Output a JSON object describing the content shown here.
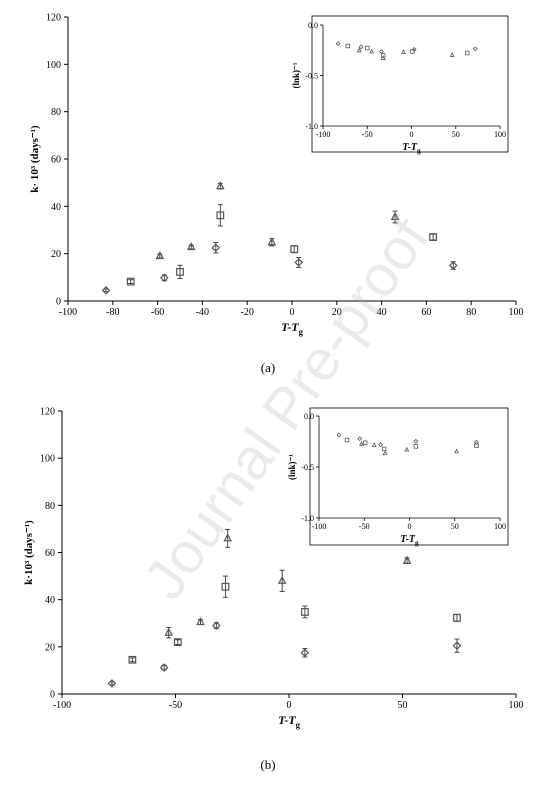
{
  "watermark": "Journal Pre-proof",
  "captions": [
    "(a)",
    "(b)"
  ],
  "chart_data": [
    {
      "type": "scatter",
      "title": "",
      "xlabel": "T-Tg",
      "ylabel": "k· 10³ (days⁻¹)",
      "xlim": [
        -100,
        100
      ],
      "ylim": [
        0,
        120
      ],
      "xticks": [
        -100,
        -80,
        -60,
        -40,
        -20,
        0,
        20,
        40,
        60,
        80,
        100
      ],
      "yticks": [
        0,
        20,
        40,
        60,
        80,
        100,
        120
      ],
      "series": [
        {
          "marker": "diamond",
          "x": [
            -83,
            -57,
            -34,
            3,
            72
          ],
          "y": [
            4.5,
            9.8,
            22.5,
            16.3,
            15
          ],
          "err": [
            0.6,
            1.2,
            2.2,
            2.1,
            1.6
          ]
        },
        {
          "marker": "square",
          "x": [
            -72,
            -50,
            -32,
            1,
            63
          ],
          "y": [
            8.2,
            12.3,
            36.2,
            21.9,
            27
          ],
          "err": [
            0.8,
            2.8,
            4.5,
            1.5,
            1.2
          ]
        },
        {
          "marker": "triangle",
          "x": [
            -59,
            -45,
            -32,
            -9,
            46
          ],
          "y": [
            19,
            22.8,
            48.5,
            24.8,
            35.5
          ],
          "err": [
            0.8,
            0.8,
            1.2,
            1.5,
            2.5
          ]
        }
      ],
      "inset": {
        "xlabel": "T-Tg",
        "ylabel": "(lnk)⁻¹",
        "xlim": [
          -100,
          100
        ],
        "ylim": [
          -1.0,
          0.0
        ],
        "xticks": [
          -100,
          -50,
          0,
          50,
          100
        ],
        "yticks": [
          0.0,
          -0.5,
          -1.0
        ],
        "series": [
          {
            "marker": "diamond",
            "x": [
              -83,
              -57,
              -34,
              3,
              72
            ],
            "y": [
              -0.185,
              -0.217,
              -0.263,
              -0.242,
              -0.237
            ]
          },
          {
            "marker": "square",
            "x": [
              -72,
              -50,
              -32,
              1,
              63
            ],
            "y": [
              -0.208,
              -0.228,
              -0.301,
              -0.262,
              -0.277
            ]
          },
          {
            "marker": "triangle",
            "x": [
              -59,
              -45,
              -32,
              -9,
              46
            ],
            "y": [
              -0.252,
              -0.264,
              -0.33,
              -0.27,
              -0.298
            ]
          }
        ]
      }
    },
    {
      "type": "scatter",
      "title": "",
      "xlabel": "T-Tg",
      "ylabel": "k·10³ (days⁻¹)",
      "xlim": [
        -100,
        100
      ],
      "ylim": [
        0,
        120
      ],
      "xticks": [
        -100,
        -50,
        0,
        50,
        100
      ],
      "yticks": [
        0,
        20,
        40,
        60,
        80,
        100,
        120
      ],
      "series": [
        {
          "marker": "diamond",
          "x": [
            -78,
            -55,
            -32,
            7,
            74
          ],
          "y": [
            4.5,
            11.2,
            29,
            17.5,
            20.5
          ],
          "err": [
            0.6,
            1,
            1.2,
            1.8,
            2.8
          ]
        },
        {
          "marker": "square",
          "x": [
            -69,
            -49,
            -28,
            7,
            74
          ],
          "y": [
            14.5,
            22,
            45.5,
            34.8,
            32.3
          ],
          "err": [
            0.8,
            1,
            4.5,
            2.5,
            1.5
          ]
        },
        {
          "marker": "triangle",
          "x": [
            -53,
            -39,
            -27,
            -3,
            52
          ],
          "y": [
            26,
            30.5,
            66,
            48,
            56.5
          ],
          "err": [
            2.2,
            1,
            3.8,
            4.5,
            1.2
          ]
        }
      ],
      "inset": {
        "xlabel": "T-Tg",
        "ylabel": "(lnk)⁻¹",
        "xlim": [
          -100,
          100
        ],
        "ylim": [
          -1.0,
          0.0
        ],
        "xticks": [
          -100,
          -50,
          0,
          50,
          100
        ],
        "yticks": [
          0.0,
          -0.5,
          -1.0
        ],
        "series": [
          {
            "marker": "diamond",
            "x": [
              -78,
              -55,
              -32,
              7,
              74
            ],
            "y": [
              -0.185,
              -0.222,
              -0.282,
              -0.248,
              -0.258
            ]
          },
          {
            "marker": "square",
            "x": [
              -69,
              -49,
              -28,
              7,
              74
            ],
            "y": [
              -0.236,
              -0.262,
              -0.323,
              -0.298,
              -0.291
            ]
          },
          {
            "marker": "triangle",
            "x": [
              -53,
              -39,
              -27,
              -3,
              52
            ],
            "y": [
              -0.274,
              -0.287,
              -0.367,
              -0.33,
              -0.347
            ]
          }
        ]
      }
    }
  ]
}
